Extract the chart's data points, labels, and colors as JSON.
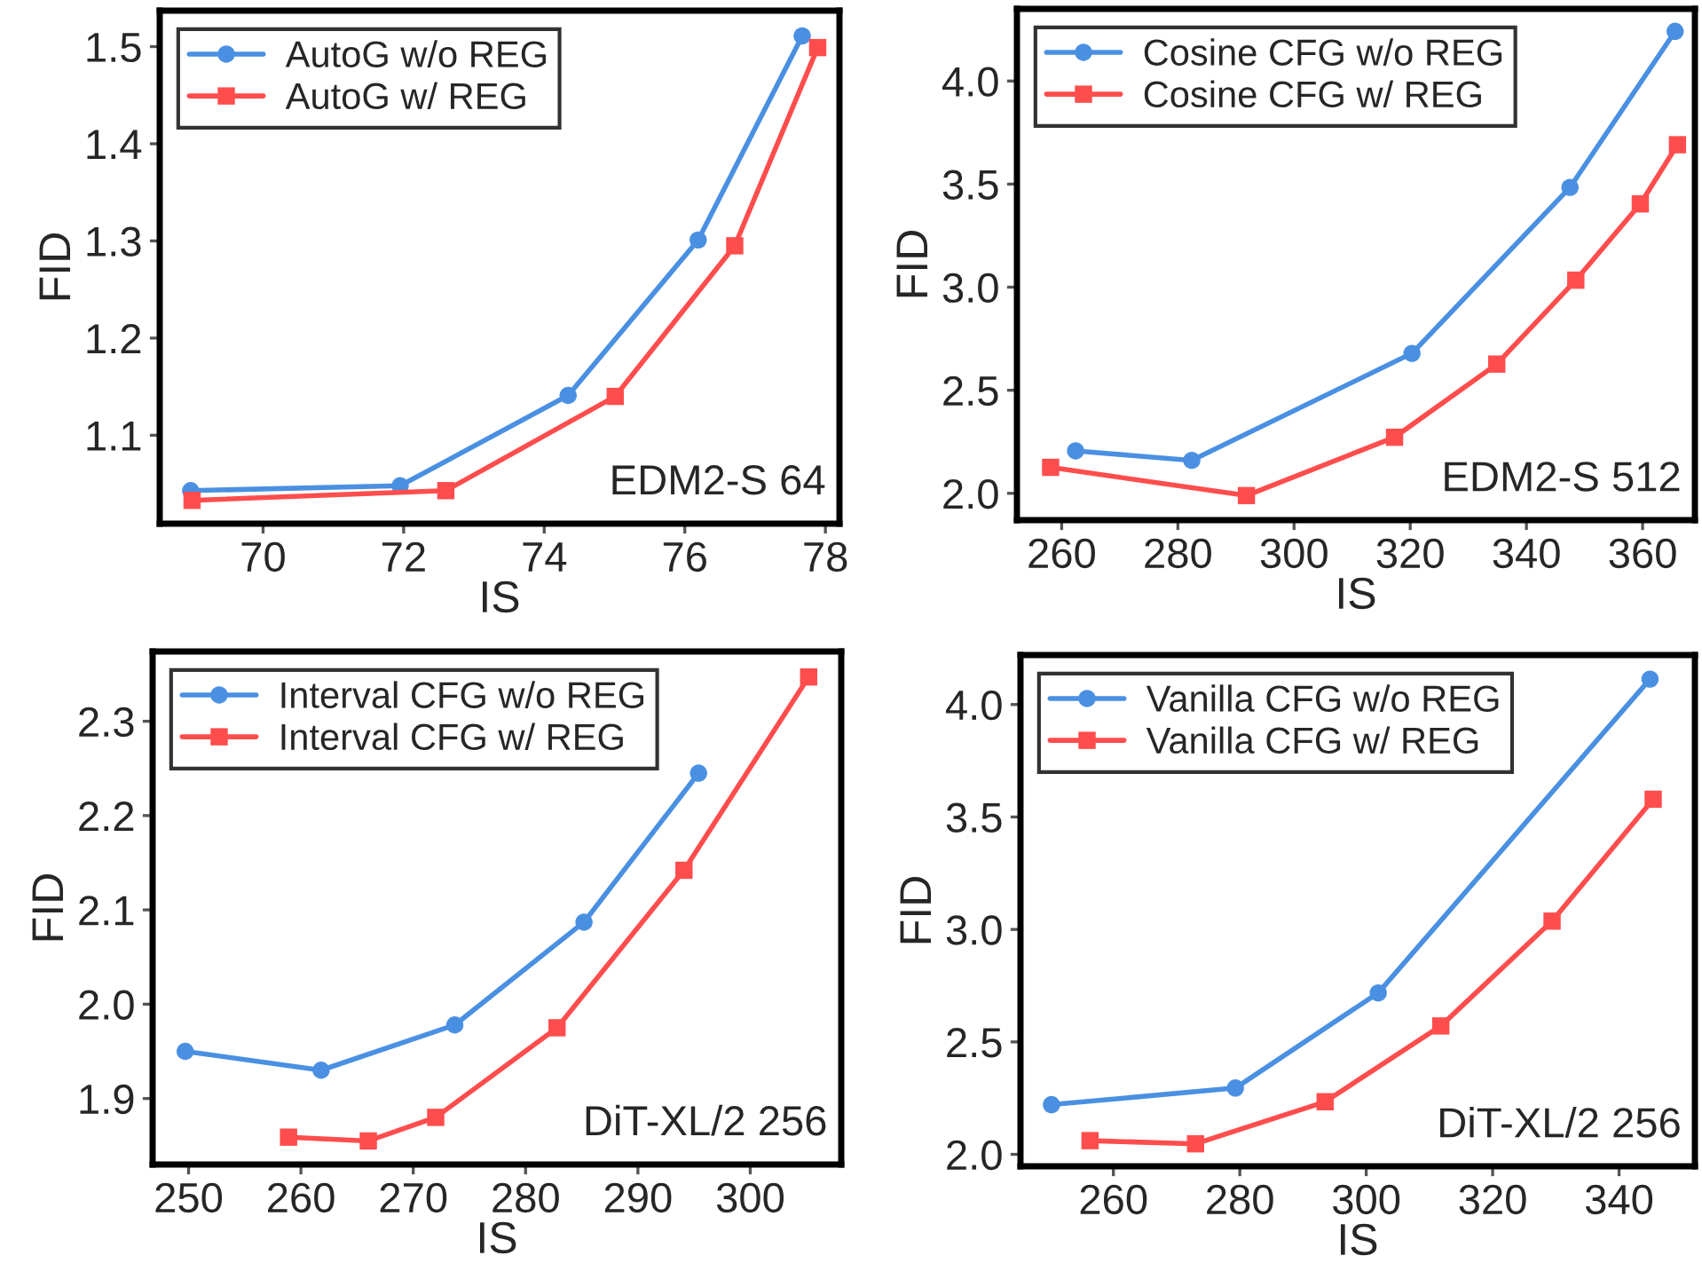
{
  "chart_data": [
    {
      "type": "line",
      "xlabel": "IS",
      "ylabel": "FID",
      "annotations": [
        "EDM2-S 64"
      ],
      "legend": "top left",
      "grid": false,
      "xlim": [
        68.53,
        78.2
      ],
      "ylim": [
        1.009,
        1.537
      ],
      "xticks": [
        70,
        72,
        74,
        76,
        78
      ],
      "yticks": [
        1.1,
        1.2,
        1.3,
        1.4,
        1.5
      ],
      "series": [
        {
          "name": "AutoG w/o REG",
          "color": "#4a90e2",
          "marker": "circle",
          "x": [
            68.97,
            71.95,
            74.34,
            76.19,
            77.67
          ],
          "values": [
            1.043,
            1.048,
            1.141,
            1.301,
            1.511
          ]
        },
        {
          "name": "AutoG w/ REG",
          "color": "#ff4d4d",
          "marker": "square",
          "x": [
            68.99,
            72.6,
            75.01,
            76.71,
            77.89
          ],
          "values": [
            1.033,
            1.043,
            1.14,
            1.295,
            1.499
          ]
        }
      ]
    },
    {
      "type": "line",
      "xlabel": "IS",
      "ylabel": "FID",
      "annotations": [
        "EDM2-S 512"
      ],
      "legend": "top left",
      "grid": false,
      "xlim": [
        252.3,
        369
      ],
      "ylim": [
        1.87,
        4.35
      ],
      "xticks": [
        260,
        280,
        300,
        320,
        340,
        360
      ],
      "yticks": [
        {
          "value": 2,
          "label": "2.0"
        },
        2.5,
        {
          "value": 3,
          "label": "3.0"
        },
        3.5,
        {
          "value": 4,
          "label": "4.0"
        }
      ],
      "series": [
        {
          "name": "Cosine CFG w/o REG",
          "color": "#4a90e2",
          "marker": "circle",
          "x": [
            262.4,
            282.4,
            320.3,
            347.5,
            365.6
          ],
          "values": [
            2.206,
            2.16,
            2.679,
            3.484,
            4.241
          ]
        },
        {
          "name": "Cosine CFG w/ REG",
          "color": "#ff4d4d",
          "marker": "square",
          "x": [
            258.1,
            291.8,
            317.3,
            334.9,
            348.5,
            359.6,
            366.0
          ],
          "values": [
            2.126,
            1.989,
            2.272,
            2.627,
            3.034,
            3.404,
            3.691
          ]
        }
      ]
    },
    {
      "type": "line",
      "xlabel": "IS",
      "ylabel": "FID",
      "annotations": [
        "DiT-XL/2 256"
      ],
      "legend": "top left",
      "grid": false,
      "xlim": [
        246.8,
        308.1
      ],
      "ylim": [
        1.83,
        2.374
      ],
      "xticks": [
        250,
        260,
        270,
        280,
        290,
        300
      ],
      "yticks": [
        1.9,
        {
          "value": 2,
          "label": "2.0"
        },
        2.1,
        2.2,
        2.3
      ],
      "series": [
        {
          "name": "Interval CFG w/o REG",
          "color": "#4a90e2",
          "marker": "circle",
          "x": [
            249.7,
            261.8,
            273.7,
            285.2,
            295.4
          ],
          "values": [
            1.95,
            1.93,
            1.978,
            2.087,
            2.245
          ]
        },
        {
          "name": "Interval CFG w/ REG",
          "color": "#ff4d4d",
          "marker": "square",
          "x": [
            258.9,
            266.0,
            272.0,
            282.8,
            294.1,
            305.2
          ],
          "values": [
            1.859,
            1.855,
            1.88,
            1.975,
            2.142,
            2.347
          ]
        }
      ]
    },
    {
      "type": "line",
      "xlabel": "IS",
      "ylabel": "FID",
      "annotations": [
        "DiT-XL/2 256"
      ],
      "legend": "top left",
      "grid": false,
      "xlim": [
        245.3,
        352
      ],
      "ylim": [
        1.947,
        4.22
      ],
      "xticks": [
        260,
        280,
        300,
        320,
        340
      ],
      "yticks": [
        {
          "value": 2,
          "label": "2.0"
        },
        2.5,
        {
          "value": 3,
          "label": "3.0"
        },
        3.5,
        {
          "value": 4,
          "label": "4.0"
        }
      ],
      "series": [
        {
          "name": "Vanilla CFG w/o REG",
          "color": "#4a90e2",
          "marker": "circle",
          "x": [
            250.2,
            279.3,
            301.9,
            344.9
          ],
          "values": [
            2.221,
            2.295,
            2.718,
            4.113
          ]
        },
        {
          "name": "Vanilla CFG w/ REG",
          "color": "#ff4d4d",
          "marker": "square",
          "x": [
            256.3,
            273.0,
            293.5,
            311.8,
            329.4,
            345.4
          ],
          "values": [
            2.061,
            2.047,
            2.234,
            2.571,
            3.037,
            3.579
          ]
        }
      ]
    }
  ]
}
